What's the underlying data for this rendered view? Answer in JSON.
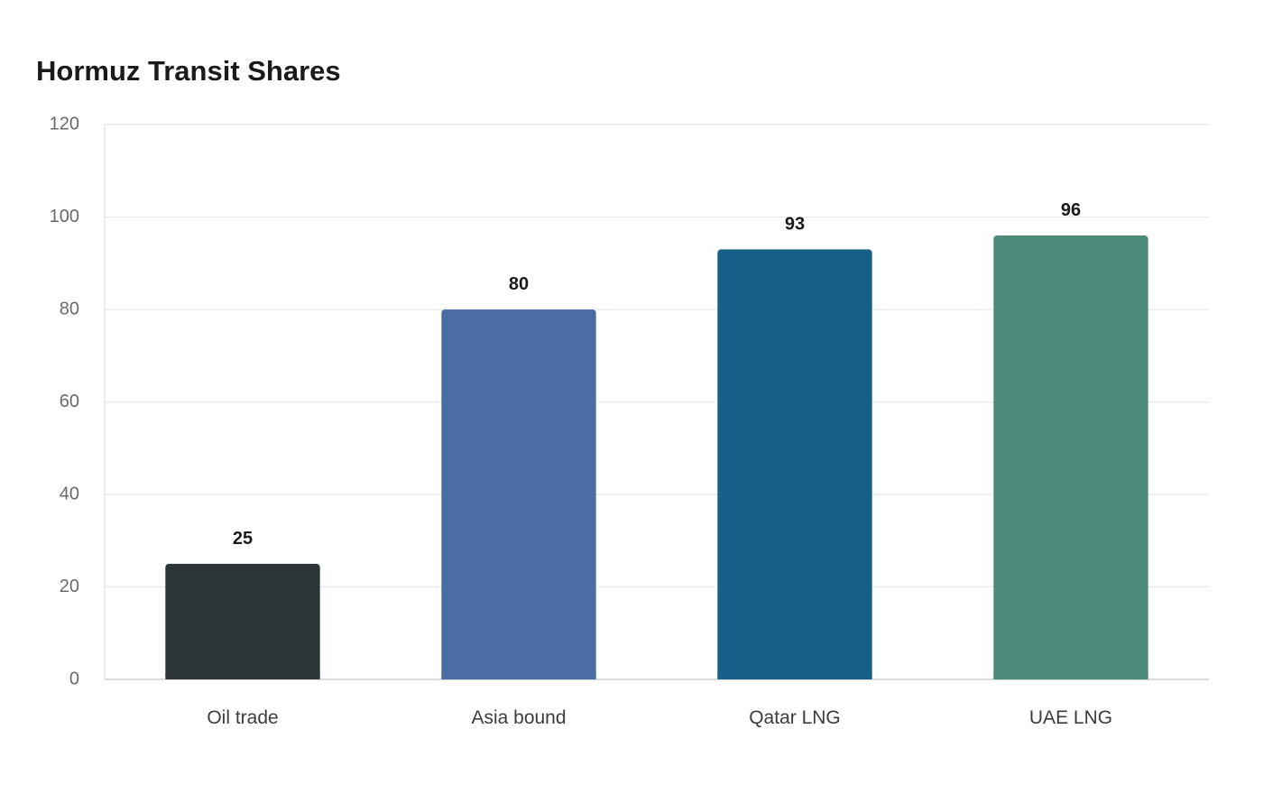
{
  "chart_data": {
    "type": "bar",
    "title": "Hormuz Transit Shares",
    "categories": [
      "Oil trade",
      "Asia bound",
      "Qatar LNG",
      "UAE LNG"
    ],
    "values": [
      25,
      80,
      93,
      96
    ],
    "colors": [
      "#2e3538",
      "#4a6ea3",
      "#186088",
      "#4c8b79"
    ],
    "ylim": [
      0,
      120
    ],
    "yticks": [
      0,
      20,
      40,
      60,
      80,
      100,
      120
    ],
    "grid": true,
    "data_labels": true
  }
}
